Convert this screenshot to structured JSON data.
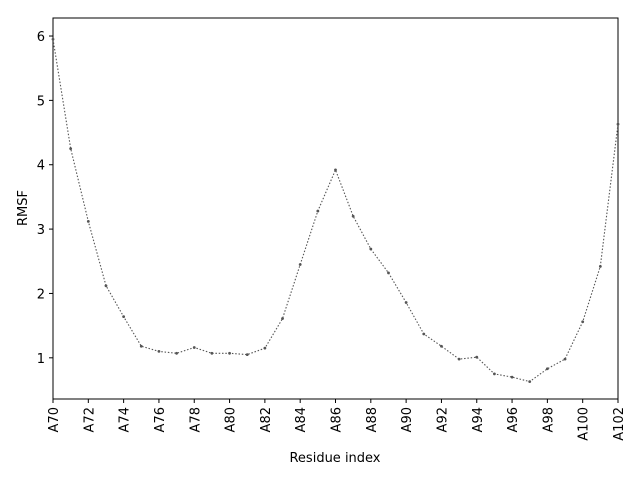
{
  "chart_data": {
    "type": "line",
    "title": "",
    "xlabel": "Residue index",
    "ylabel": "RMSF",
    "x": [
      "A70",
      "A71",
      "A72",
      "A73",
      "A74",
      "A75",
      "A76",
      "A77",
      "A78",
      "A79",
      "A80",
      "A81",
      "A82",
      "A83",
      "A84",
      "A85",
      "A86",
      "A87",
      "A88",
      "A89",
      "A90",
      "A91",
      "A92",
      "A93",
      "A94",
      "A95",
      "A96",
      "A97",
      "A98",
      "A99",
      "A100",
      "A101",
      "A102"
    ],
    "x_tick_labels": [
      "A70",
      "A72",
      "A74",
      "A76",
      "A78",
      "A80",
      "A82",
      "A84",
      "A86",
      "A88",
      "A90",
      "A92",
      "A94",
      "A96",
      "A98",
      "A100",
      "A102"
    ],
    "y_ticks": [
      1,
      2,
      3,
      4,
      5,
      6
    ],
    "ylim": [
      0.36,
      6.28
    ],
    "series": [
      {
        "values": [
          5.95,
          4.25,
          3.12,
          2.12,
          1.64,
          1.18,
          1.1,
          1.07,
          1.16,
          1.07,
          1.07,
          1.05,
          1.15,
          1.61,
          2.45,
          3.28,
          3.92,
          3.2,
          2.69,
          2.32,
          1.86,
          1.37,
          1.18,
          0.98,
          1.01,
          0.75,
          0.7,
          0.63,
          0.83,
          0.98,
          1.56,
          2.42,
          4.63
        ],
        "color": "#555555"
      }
    ],
    "grid": false,
    "legend": "none"
  }
}
